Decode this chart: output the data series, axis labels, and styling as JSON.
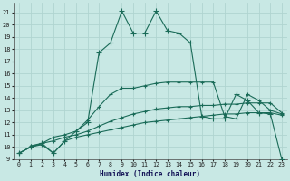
{
  "xlabel": "Humidex (Indice chaleur)",
  "xlim": [
    -0.5,
    23.5
  ],
  "ylim": [
    9.0,
    21.8
  ],
  "yticks": [
    9,
    10,
    11,
    12,
    13,
    14,
    15,
    16,
    17,
    18,
    19,
    20,
    21
  ],
  "xticks": [
    0,
    1,
    2,
    3,
    4,
    5,
    6,
    7,
    8,
    9,
    10,
    11,
    12,
    13,
    14,
    15,
    16,
    17,
    18,
    19,
    20,
    21,
    22,
    23
  ],
  "bg_color": "#c8e8e4",
  "grid_color": "#b0d4d0",
  "line_color": "#1a6b58",
  "curve_peak_x": [
    0,
    1,
    2,
    3,
    4,
    5,
    6,
    7,
    8,
    9,
    10,
    11,
    12,
    13,
    14,
    15,
    16,
    17,
    18,
    19,
    20,
    21,
    22,
    23
  ],
  "curve_peak_y": [
    9.5,
    10.0,
    10.3,
    9.5,
    10.5,
    11.3,
    12.0,
    17.7,
    18.5,
    21.1,
    19.3,
    19.3,
    21.1,
    19.5,
    19.3,
    18.5,
    12.5,
    12.3,
    12.3,
    14.3,
    13.8,
    12.8,
    12.7,
    9.0
  ],
  "curve_upper_x": [
    1,
    2,
    3,
    4,
    5,
    6,
    7,
    8,
    9,
    10,
    11,
    12,
    13,
    14,
    15,
    16,
    17,
    18,
    19,
    20,
    21,
    22,
    23
  ],
  "curve_upper_y": [
    10.1,
    10.3,
    10.8,
    11.0,
    11.3,
    12.2,
    13.3,
    14.3,
    14.8,
    14.8,
    15.0,
    15.2,
    15.3,
    15.3,
    15.3,
    15.3,
    15.3,
    12.5,
    12.3,
    14.3,
    13.8,
    13.0,
    12.7
  ],
  "curve_mid_x": [
    0,
    1,
    2,
    3,
    4,
    5,
    6,
    7,
    8,
    9,
    10,
    11,
    12,
    13,
    14,
    15,
    16,
    17,
    18,
    19,
    20,
    21,
    22,
    23
  ],
  "curve_mid_y": [
    9.5,
    10.0,
    10.3,
    10.5,
    10.8,
    11.0,
    11.3,
    11.7,
    12.1,
    12.4,
    12.7,
    12.9,
    13.1,
    13.2,
    13.3,
    13.3,
    13.4,
    13.4,
    13.5,
    13.5,
    13.6,
    13.6,
    13.6,
    12.8
  ],
  "curve_low_x": [
    0,
    1,
    2,
    3,
    4,
    5,
    6,
    7,
    8,
    9,
    10,
    11,
    12,
    13,
    14,
    15,
    16,
    17,
    18,
    19,
    20,
    21,
    22,
    23
  ],
  "curve_low_y": [
    9.5,
    10.0,
    10.2,
    9.5,
    10.5,
    10.8,
    11.0,
    11.2,
    11.4,
    11.6,
    11.8,
    12.0,
    12.1,
    12.2,
    12.3,
    12.4,
    12.5,
    12.6,
    12.7,
    12.7,
    12.8,
    12.8,
    12.8,
    12.6
  ]
}
